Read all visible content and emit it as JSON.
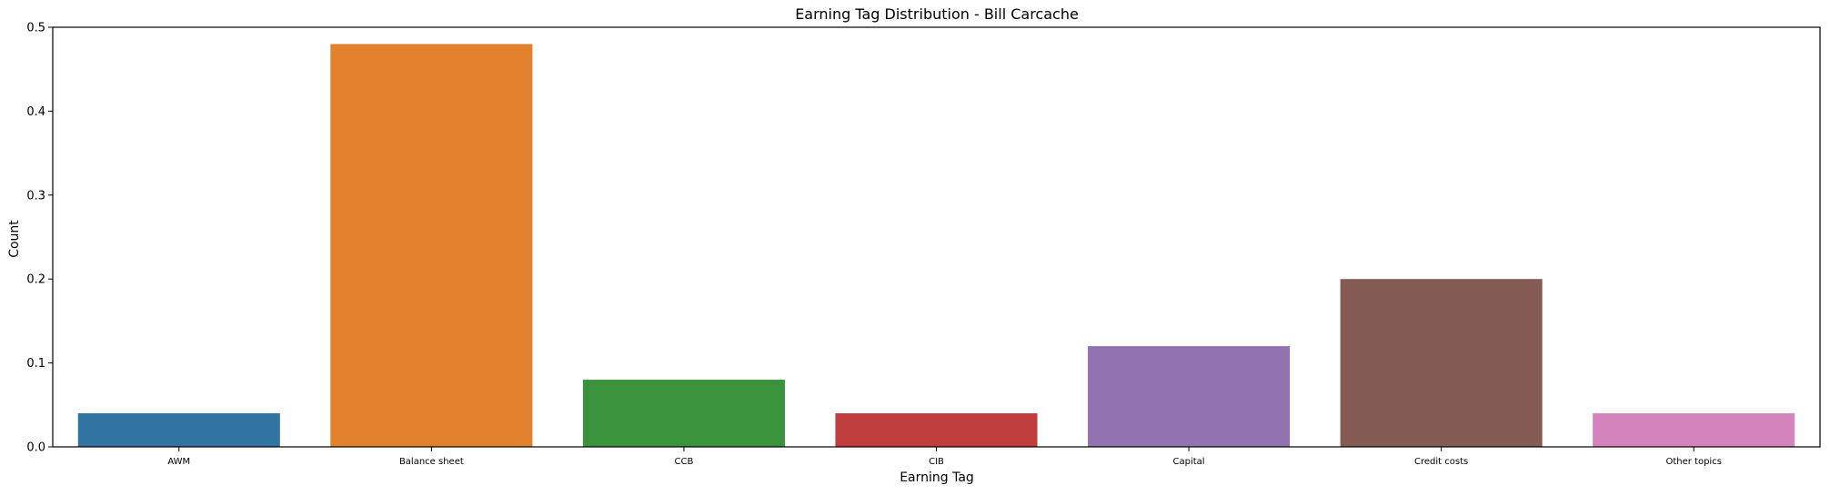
{
  "chart_data": {
    "type": "bar",
    "title": "Earning Tag Distribution - Bill Carcache",
    "xlabel": "Earning Tag",
    "ylabel": "Count",
    "categories": [
      "AWM",
      "Balance sheet",
      "CCB",
      "CIB",
      "Capital",
      "Credit costs",
      "Other topics"
    ],
    "values": [
      0.04,
      0.48,
      0.08,
      0.04,
      0.12,
      0.2,
      0.04
    ],
    "colors": [
      "#3274a1",
      "#e1812c",
      "#3a923a",
      "#c03d3e",
      "#9372b2",
      "#845b53",
      "#d684bd"
    ],
    "ylim": [
      0,
      0.5
    ],
    "yticks": [
      "0.0",
      "0.1",
      "0.2",
      "0.3",
      "0.4",
      "0.5"
    ],
    "grid": false,
    "legend": "none"
  }
}
